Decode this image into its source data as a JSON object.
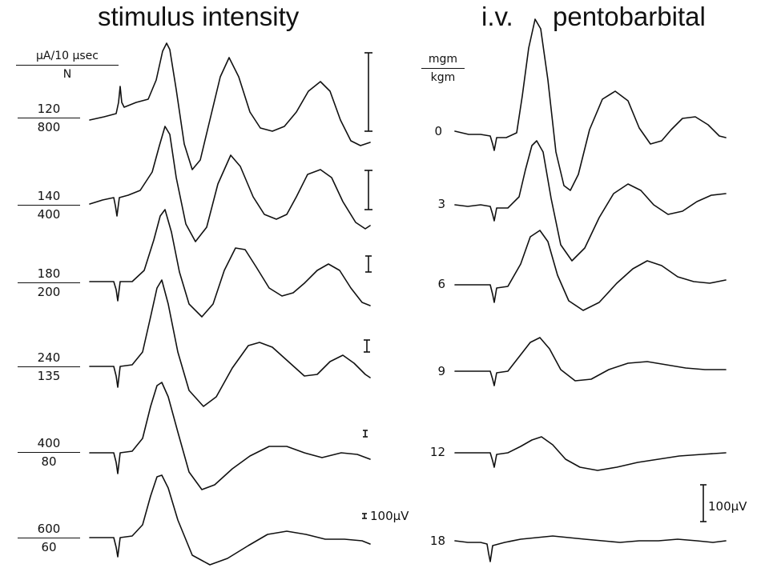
{
  "titles": {
    "left": "stimulus intensity",
    "right_prefix": "i.v.",
    "right": "pentobarbital"
  },
  "left_panel": {
    "header_num": "μA/10 μsec",
    "header_den": "N",
    "rows": [
      {
        "num": "120",
        "den": "800"
      },
      {
        "num": "140",
        "den": "400"
      },
      {
        "num": "180",
        "den": "200"
      },
      {
        "num": "240",
        "den": "135"
      },
      {
        "num": "400",
        "den": "80"
      },
      {
        "num": "600",
        "den": "60"
      }
    ],
    "scale_label": "100μV"
  },
  "right_panel": {
    "header_num": "mgm",
    "header_den": "kgm",
    "doses": [
      "0",
      "3",
      "6",
      "9",
      "12",
      "18"
    ],
    "scale_label": "100μV"
  }
}
